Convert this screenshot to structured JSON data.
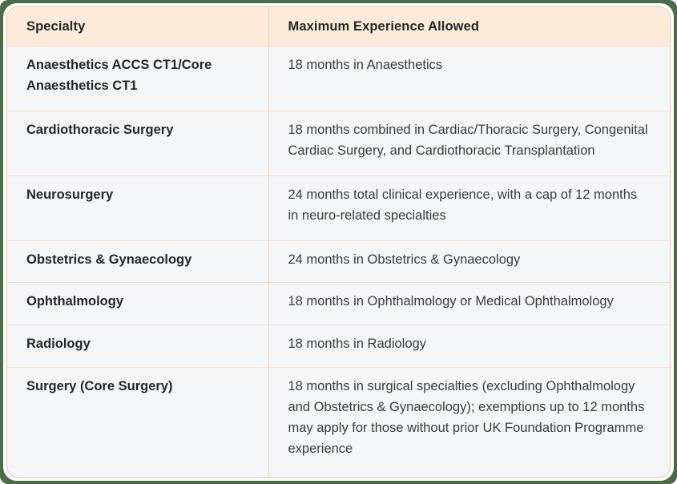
{
  "colors": {
    "frame-bg": "#4C6B47",
    "card-bg": "#FDFDFE",
    "header-bg": "#FCEADA",
    "row-bg": "#F5F6F8",
    "row-divider": "#F3E0CE",
    "col-divider": "#EDD8C3",
    "outer-border": "#E7CBAE",
    "heading-text": "#262626",
    "body-text": "#3B3B3B"
  },
  "table": {
    "columns": [
      {
        "label": "Specialty"
      },
      {
        "label": "Maximum Experience Allowed"
      }
    ],
    "rows": [
      {
        "specialty": "Anaesthetics ACCS CT1/Core Anaesthetics CT1",
        "experience": "18 months in Anaesthetics"
      },
      {
        "specialty": "Cardiothoracic Surgery",
        "experience": "18 months combined in Cardiac/Thoracic Surgery, Congenital Cardiac Surgery, and Cardiothoracic Transplantation"
      },
      {
        "specialty": "Neurosurgery",
        "experience": "24 months total clinical experience, with a cap of 12 months in neuro-related specialties"
      },
      {
        "specialty": "Obstetrics & Gynaecology",
        "experience": "24 months in Obstetrics & Gynaecology"
      },
      {
        "specialty": "Ophthalmology",
        "experience": "18 months in Ophthalmology or Medical Ophthalmology"
      },
      {
        "specialty": "Radiology",
        "experience": "18 months in Radiology"
      },
      {
        "specialty": "Surgery (Core Surgery)",
        "experience": "18 months in surgical specialties (excluding Ophthalmology and Obstetrics & Gynaecology); exemptions up to 12 months may apply for those without prior UK Foundation Programme experience"
      }
    ]
  }
}
